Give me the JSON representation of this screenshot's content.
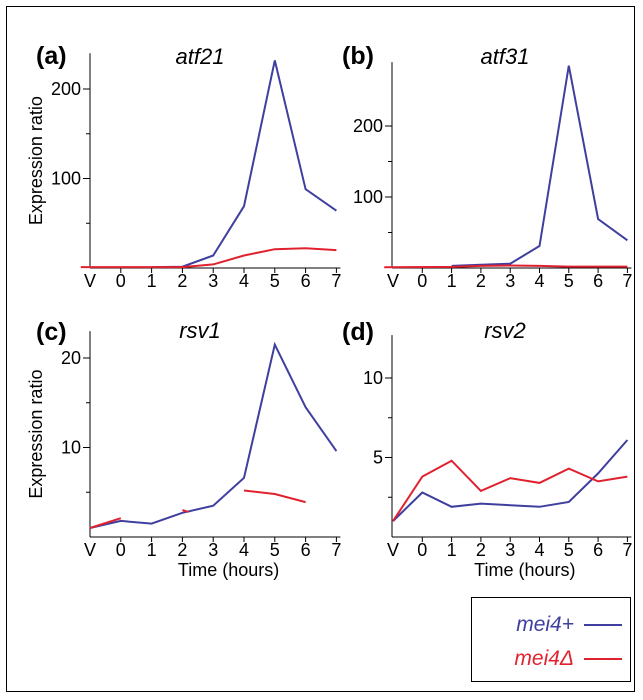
{
  "chart_data": [
    {
      "type": "line",
      "panel": "(a)",
      "title": "atf21",
      "ylabel": "Expression ratio",
      "xlabel": "",
      "categories": [
        "V",
        "0",
        "1",
        "2",
        "3",
        "4",
        "5",
        "6",
        "7"
      ],
      "yticks": [
        100,
        200
      ],
      "ylim": [
        0,
        240
      ],
      "series": [
        {
          "name": "mei4+",
          "x": [
            2,
            3,
            4,
            5,
            6,
            7,
            8
          ],
          "values": [
            1,
            1.5,
            14,
            69,
            232,
            88,
            64
          ]
        },
        {
          "name": "mei4Δ",
          "x": [
            -0.3,
            2,
            3,
            4,
            5,
            6,
            7,
            8
          ],
          "values": [
            1,
            1,
            1,
            4,
            14,
            21,
            22,
            20
          ]
        }
      ]
    },
    {
      "type": "line",
      "panel": "(b)",
      "title": "atf31",
      "ylabel": "",
      "xlabel": "",
      "categories": [
        "V",
        "0",
        "1",
        "2",
        "3",
        "4",
        "5",
        "6",
        "7"
      ],
      "yticks": [
        100,
        200
      ],
      "ylim": [
        0,
        290
      ],
      "series": [
        {
          "name": "mei4+",
          "x": [
            2,
            3,
            4,
            5,
            6,
            7,
            8
          ],
          "values": [
            3,
            4.5,
            6,
            31,
            285,
            69,
            39
          ]
        },
        {
          "name": "mei4Δ",
          "x": [
            -0.3,
            2,
            3,
            4,
            5,
            6,
            7,
            8
          ],
          "values": [
            1,
            1.5,
            3,
            3.5,
            3,
            2,
            2,
            2
          ]
        }
      ]
    },
    {
      "type": "line",
      "panel": "(c)",
      "title": "rsv1",
      "ylabel": "Expression ratio",
      "xlabel": "Time (hours)",
      "categories": [
        "V",
        "0",
        "1",
        "2",
        "3",
        "4",
        "5",
        "6",
        "7"
      ],
      "yticks": [
        10,
        20
      ],
      "ylim": [
        0,
        23
      ],
      "series": [
        {
          "name": "mei4+",
          "x": [
            0,
            1,
            2,
            3,
            4,
            5,
            6,
            7,
            8
          ],
          "values": [
            1,
            1.8,
            1.5,
            2.7,
            3.5,
            6.6,
            21.5,
            14.5,
            9.6
          ]
        },
        {
          "name": "mei4Δ",
          "x": [
            0,
            1,
            null,
            3,
            3.2,
            null,
            5,
            6,
            7
          ],
          "values": [
            1,
            2.1,
            null,
            3,
            2.8,
            null,
            5.2,
            4.8,
            3.9
          ]
        }
      ]
    },
    {
      "type": "line",
      "panel": "(d)",
      "title": "rsv2",
      "ylabel": "",
      "xlabel": "Time (hours)",
      "categories": [
        "V",
        "0",
        "1",
        "2",
        "3",
        "4",
        "5",
        "6",
        "7"
      ],
      "yticks": [
        5,
        10
      ],
      "ylim": [
        0,
        12.7
      ],
      "series": [
        {
          "name": "mei4+",
          "x": [
            0,
            1,
            2,
            3,
            4,
            5,
            6,
            7,
            8
          ],
          "values": [
            1,
            2.8,
            1.9,
            2.1,
            2.0,
            1.9,
            2.2,
            4.0,
            6.1
          ]
        },
        {
          "name": "mei4Δ",
          "x": [
            0,
            1,
            2,
            3,
            4,
            5,
            6,
            7,
            8
          ],
          "values": [
            1,
            3.8,
            4.8,
            2.9,
            3.7,
            3.4,
            4.3,
            3.5,
            3.8
          ]
        }
      ]
    }
  ],
  "legend": {
    "items": [
      {
        "label": "mei4+",
        "color": "#3f3f9f"
      },
      {
        "label": "mei4Δ",
        "color": "#e0222f"
      }
    ]
  },
  "colors": {
    "mei4+": "#3f3f9f",
    "mei4Δ": "#e0222f",
    "axis": "#000000"
  }
}
